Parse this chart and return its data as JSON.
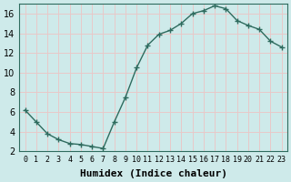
{
  "x": [
    0,
    1,
    2,
    3,
    4,
    5,
    6,
    7,
    8,
    9,
    10,
    11,
    12,
    13,
    14,
    15,
    16,
    17,
    18,
    19,
    20,
    21,
    22,
    23
  ],
  "y": [
    6.2,
    5.0,
    3.8,
    3.2,
    2.8,
    2.7,
    2.5,
    2.3,
    5.0,
    7.5,
    10.5,
    12.8,
    13.9,
    14.3,
    15.0,
    16.0,
    16.3,
    16.8,
    16.5,
    15.3,
    14.8,
    14.4,
    13.2,
    12.6
  ],
  "line_color": "#2e6b5e",
  "marker": "+",
  "marker_size": 4,
  "background_color": "#ceeaea",
  "grid_color": "#e8c8c8",
  "xlabel": "Humidex (Indice chaleur)",
  "xlabel_fontsize": 8,
  "tick_fontsize": 7,
  "ylim": [
    2,
    17
  ],
  "xlim": [
    -0.5,
    23.5
  ],
  "yticks": [
    2,
    4,
    6,
    8,
    10,
    12,
    14,
    16
  ],
  "xtick_labels": [
    "0",
    "1",
    "2",
    "3",
    "4",
    "5",
    "6",
    "7",
    "8",
    "9",
    "10",
    "11",
    "12",
    "13",
    "14",
    "15",
    "16",
    "17",
    "18",
    "19",
    "20",
    "21",
    "22",
    "23"
  ],
  "spine_color": "#2e6b5e",
  "figsize": [
    3.2,
    2.0
  ],
  "dpi": 100
}
